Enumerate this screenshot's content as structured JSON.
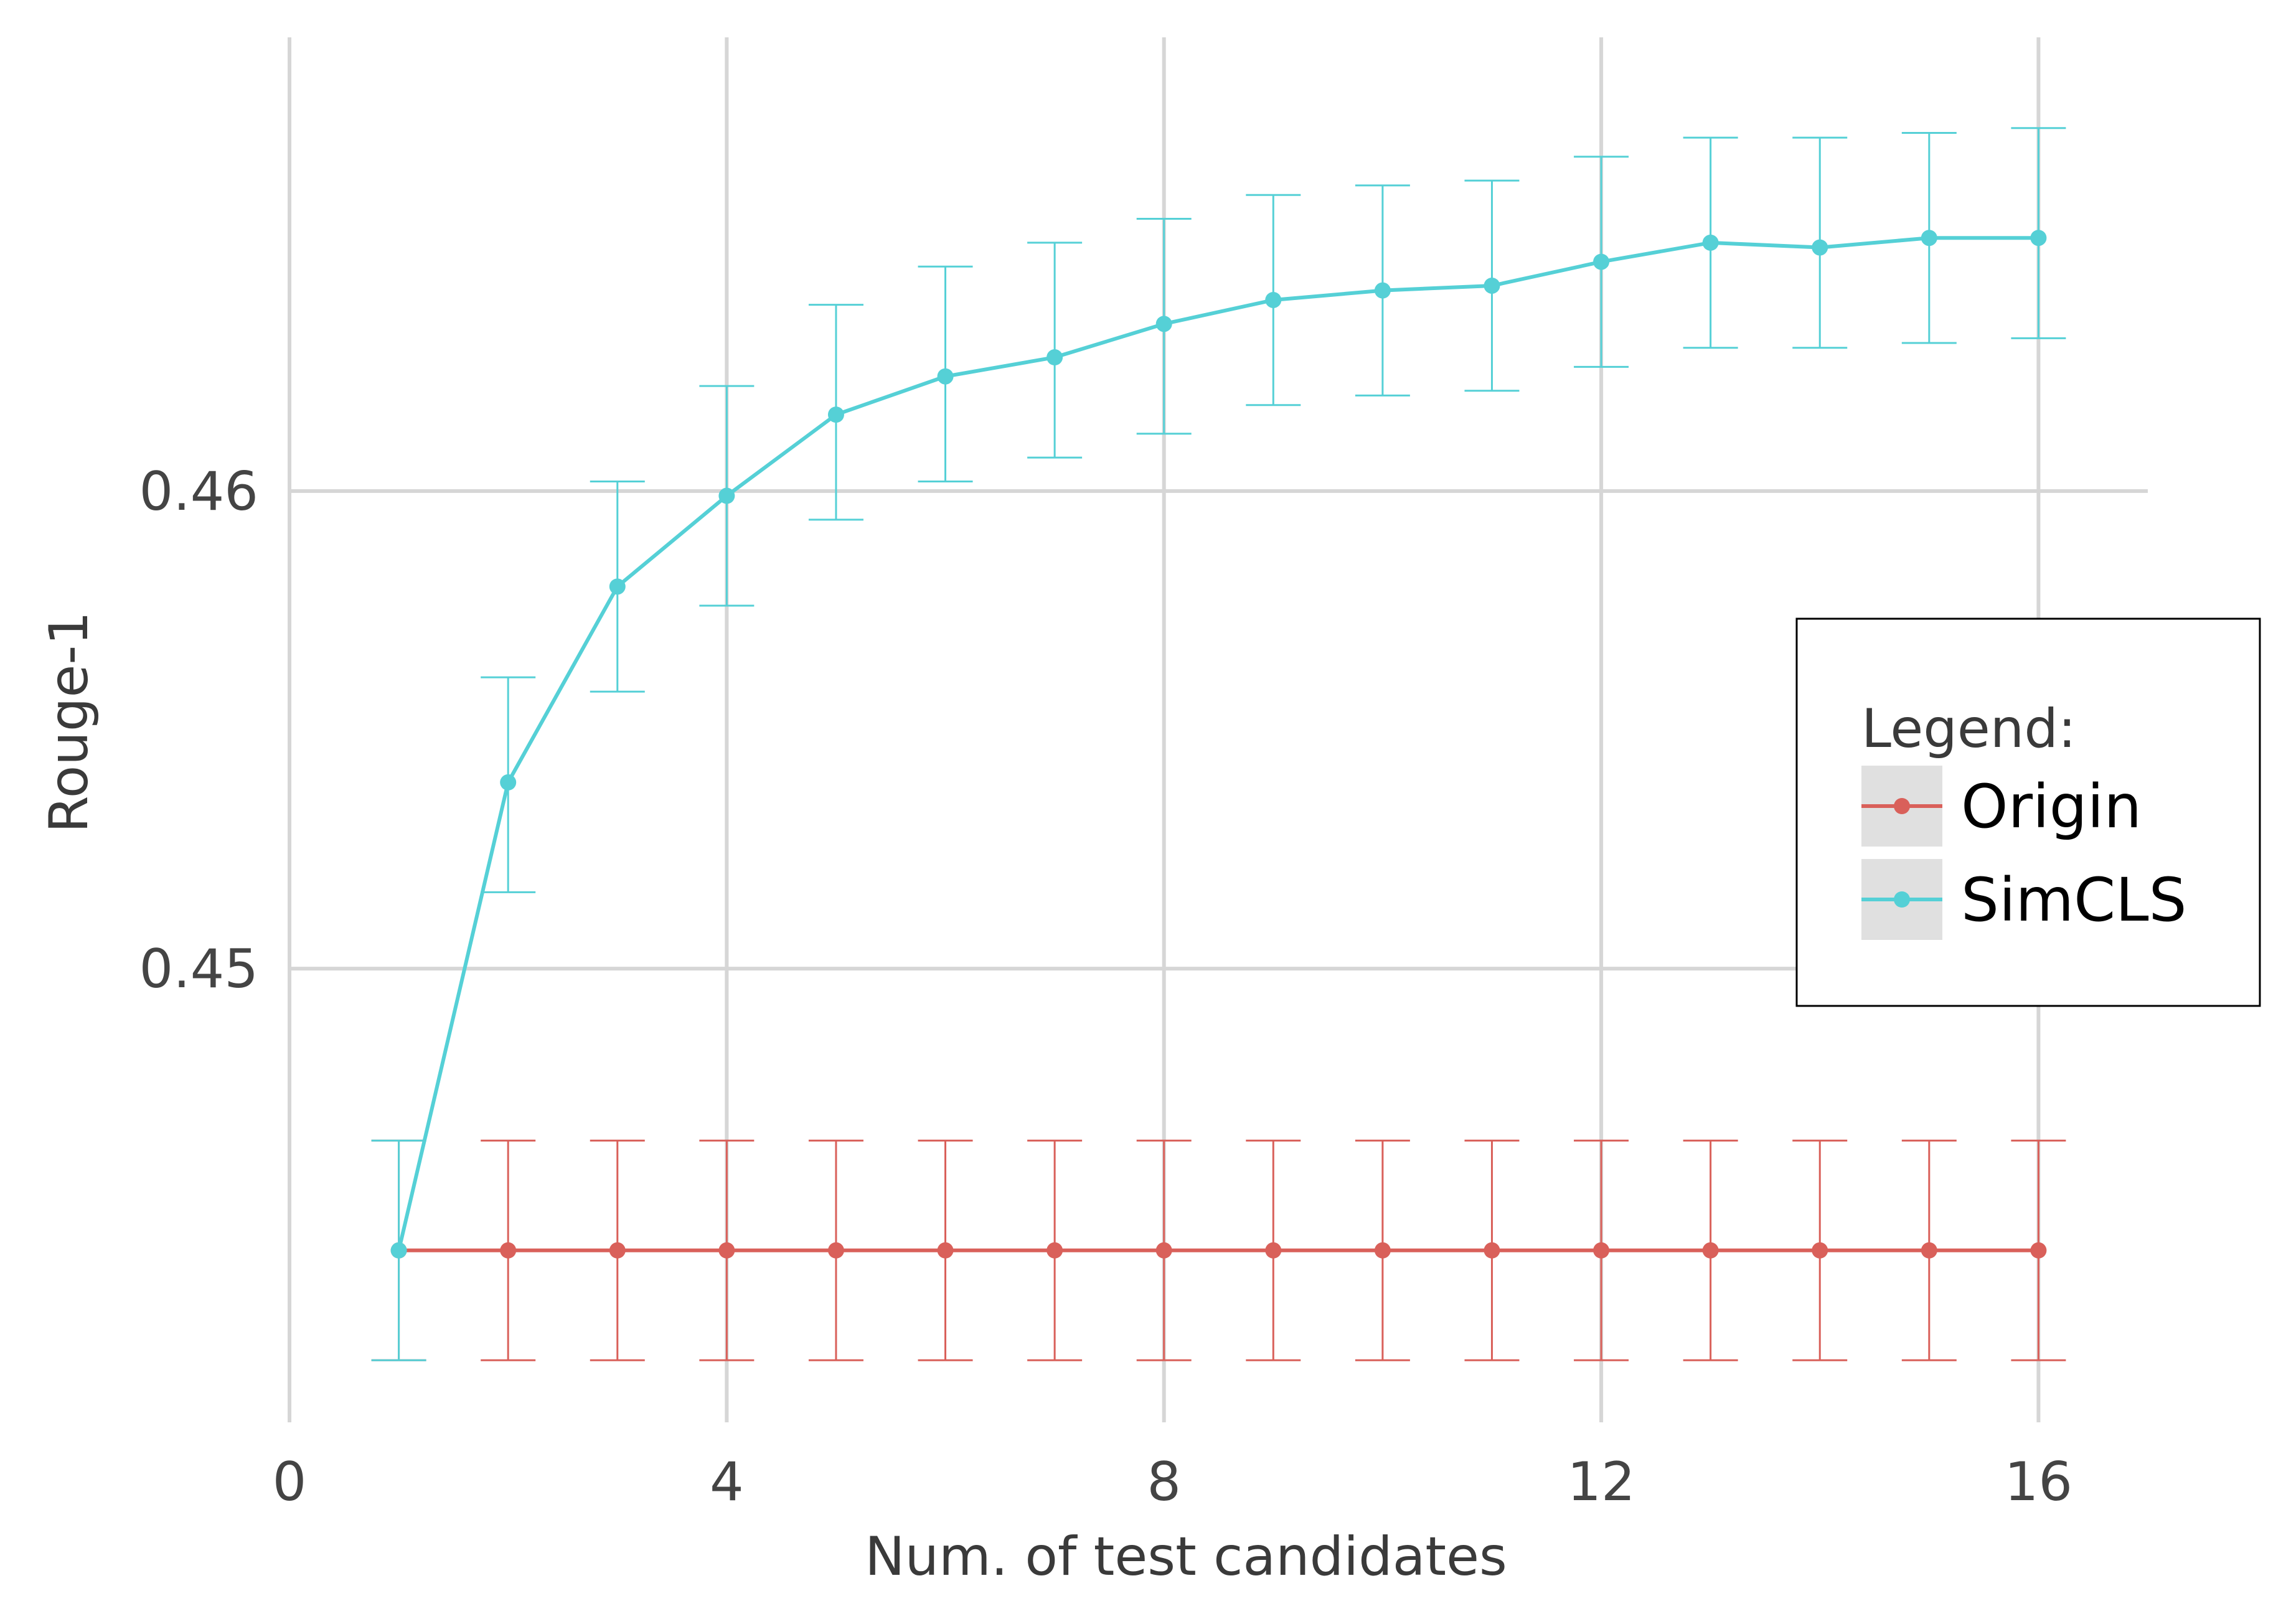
{
  "chart_data": {
    "type": "line",
    "title": "",
    "xlabel": "Num. of test candidates",
    "ylabel": "Rouge-1",
    "xlim": [
      0,
      17
    ],
    "ylim": [
      0.4405,
      0.4695
    ],
    "x_ticks": [
      0,
      4,
      8,
      12,
      16
    ],
    "x_tick_labels": [
      "0",
      "4",
      "8",
      "12",
      "16"
    ],
    "y_ticks": [
      0.45,
      0.46
    ],
    "y_tick_labels": [
      "0.45",
      "0.46"
    ],
    "grid": true,
    "legend": {
      "title": "Legend:",
      "position": "right",
      "entries": [
        "Origin",
        "SimCLS"
      ]
    },
    "x": [
      1,
      2,
      3,
      4,
      5,
      6,
      7,
      8,
      9,
      10,
      11,
      12,
      13,
      14,
      15,
      16
    ],
    "series": [
      {
        "name": "Origin",
        "color": "#d9605a",
        "values": [
          0.4441,
          0.4441,
          0.4441,
          0.4441,
          0.4441,
          0.4441,
          0.4441,
          0.4441,
          0.4441,
          0.4441,
          0.4441,
          0.4441,
          0.4441,
          0.4441,
          0.4441,
          0.4441
        ],
        "err_low": [
          0.4418,
          0.4418,
          0.4418,
          0.4418,
          0.4418,
          0.4418,
          0.4418,
          0.4418,
          0.4418,
          0.4418,
          0.4418,
          0.4418,
          0.4418,
          0.4418,
          0.4418,
          0.4418
        ],
        "err_high": [
          0.4464,
          0.4464,
          0.4464,
          0.4464,
          0.4464,
          0.4464,
          0.4464,
          0.4464,
          0.4464,
          0.4464,
          0.4464,
          0.4464,
          0.4464,
          0.4464,
          0.4464,
          0.4464
        ]
      },
      {
        "name": "SimCLS",
        "color": "#55d0d6",
        "values": [
          0.4441,
          0.4539,
          0.458,
          0.4599,
          0.4616,
          0.4624,
          0.4628,
          0.4635,
          0.464,
          0.4642,
          0.4643,
          0.4648,
          0.4652,
          0.4651,
          0.4653,
          0.4653
        ],
        "err_low": [
          0.4418,
          0.4516,
          0.4558,
          0.4576,
          0.4594,
          0.4602,
          0.4607,
          0.4612,
          0.4618,
          0.462,
          0.4621,
          0.4626,
          0.463,
          0.463,
          0.4631,
          0.4632
        ],
        "err_high": [
          0.4464,
          0.4561,
          0.4602,
          0.4622,
          0.4639,
          0.4647,
          0.4652,
          0.4657,
          0.4662,
          0.4664,
          0.4665,
          0.467,
          0.4674,
          0.4674,
          0.4675,
          0.4676
        ]
      }
    ]
  }
}
